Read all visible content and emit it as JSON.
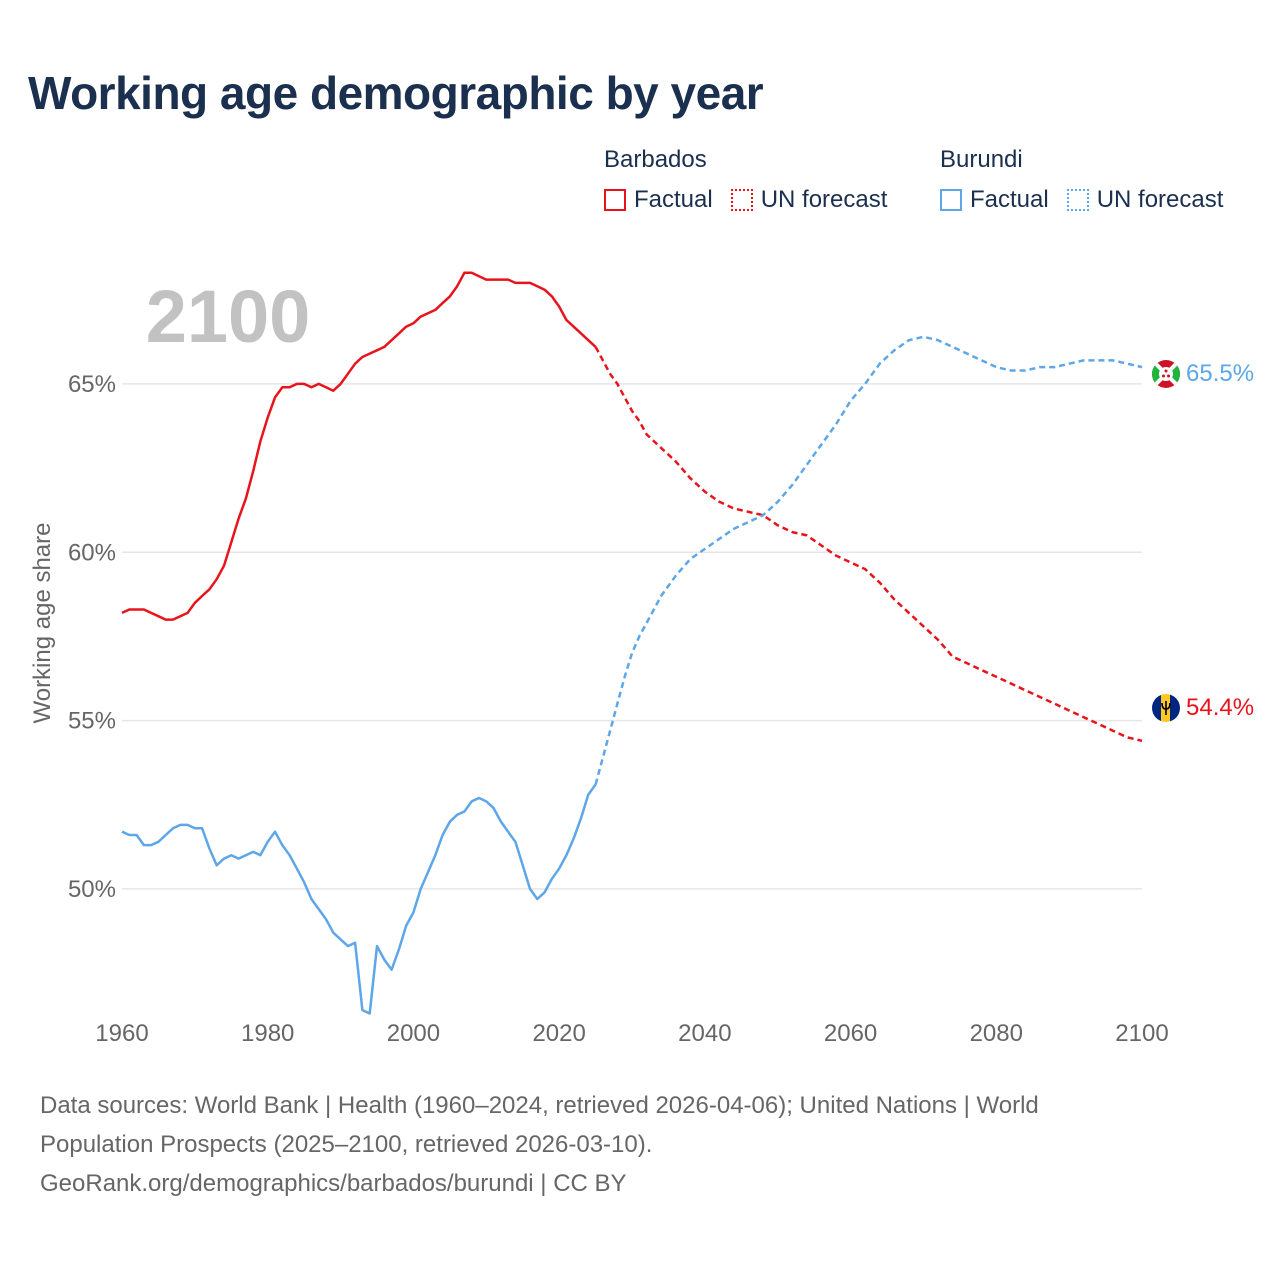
{
  "title": "Working age demographic by year",
  "year_watermark": "2100",
  "legend": {
    "groups": [
      {
        "name": "Barbados",
        "color": "#e8141c",
        "factual_label": "Factual",
        "forecast_label": "UN forecast"
      },
      {
        "name": "Burundi",
        "color": "#5da6e8",
        "factual_label": "Factual",
        "forecast_label": "UN forecast"
      }
    ]
  },
  "end_labels": {
    "barbados": "54.4%",
    "burundi": "65.5%"
  },
  "footer": {
    "line1": "Data sources: World Bank | Health (1960–2024, retrieved 2026-04-06); United Nations | World",
    "line2": "Population Prospects (2025–2100, retrieved 2026-03-10).",
    "line3": "GeoRank.org/demographics/barbados/burundi | CC BY"
  },
  "chart_data": {
    "type": "line",
    "title": "Working age demographic by year",
    "xlabel": "",
    "ylabel": "Working age share",
    "xlim": [
      1960,
      2100
    ],
    "ylim": [
      46.7,
      68.8
    ],
    "y_ticks": [
      50,
      55,
      60,
      65
    ],
    "y_tick_labels": [
      "50%",
      "55%",
      "60%",
      "65%"
    ],
    "x_ticks": [
      1960,
      1980,
      2000,
      2020,
      2040,
      2060,
      2080,
      2100
    ],
    "x_tick_labels": [
      "1960",
      "1980",
      "2000",
      "2020",
      "2040",
      "2060",
      "2080",
      "2100"
    ],
    "grid": true,
    "forecast_start": 2025,
    "series": [
      {
        "name": "Barbados",
        "color": "#e8141c",
        "x": [
          1960,
          1961,
          1962,
          1963,
          1964,
          1965,
          1966,
          1967,
          1968,
          1969,
          1970,
          1971,
          1972,
          1973,
          1974,
          1975,
          1976,
          1977,
          1978,
          1979,
          1980,
          1981,
          1982,
          1983,
          1984,
          1985,
          1986,
          1987,
          1988,
          1989,
          1990,
          1991,
          1992,
          1993,
          1994,
          1995,
          1996,
          1997,
          1998,
          1999,
          2000,
          2001,
          2002,
          2003,
          2004,
          2005,
          2006,
          2007,
          2008,
          2009,
          2010,
          2011,
          2012,
          2013,
          2014,
          2015,
          2016,
          2017,
          2018,
          2019,
          2020,
          2021,
          2022,
          2023,
          2024,
          2025,
          2026,
          2027,
          2028,
          2029,
          2030,
          2031,
          2032,
          2034,
          2036,
          2038,
          2040,
          2042,
          2044,
          2046,
          2048,
          2050,
          2052,
          2054,
          2056,
          2058,
          2060,
          2062,
          2064,
          2066,
          2068,
          2070,
          2072,
          2074,
          2076,
          2078,
          2080,
          2082,
          2084,
          2086,
          2088,
          2090,
          2092,
          2094,
          2096,
          2098,
          2100
        ],
        "values": [
          58.2,
          58.3,
          58.3,
          58.3,
          58.2,
          58.1,
          58.0,
          58.0,
          58.1,
          58.2,
          58.5,
          58.7,
          58.9,
          59.2,
          59.6,
          60.3,
          61.0,
          61.6,
          62.4,
          63.3,
          64.0,
          64.6,
          64.9,
          64.9,
          65.0,
          65.0,
          64.9,
          65.0,
          64.9,
          64.8,
          65.0,
          65.3,
          65.6,
          65.8,
          65.9,
          66.0,
          66.1,
          66.3,
          66.5,
          66.7,
          66.8,
          67.0,
          67.1,
          67.2,
          67.4,
          67.6,
          67.9,
          68.3,
          68.3,
          68.2,
          68.1,
          68.1,
          68.1,
          68.1,
          68.0,
          68.0,
          68.0,
          67.9,
          67.8,
          67.6,
          67.3,
          66.9,
          66.7,
          66.5,
          66.3,
          66.1,
          65.7,
          65.3,
          65.0,
          64.6,
          64.2,
          63.9,
          63.5,
          63.1,
          62.7,
          62.2,
          61.8,
          61.5,
          61.3,
          61.2,
          61.1,
          60.8,
          60.6,
          60.5,
          60.2,
          59.9,
          59.7,
          59.5,
          59.1,
          58.6,
          58.2,
          57.8,
          57.4,
          56.9,
          56.7,
          56.5,
          56.3,
          56.1,
          55.9,
          55.7,
          55.5,
          55.3,
          55.1,
          54.9,
          54.7,
          54.5,
          54.4
        ]
      },
      {
        "name": "Burundi",
        "color": "#5da6e8",
        "x": [
          1960,
          1961,
          1962,
          1963,
          1964,
          1965,
          1966,
          1967,
          1968,
          1969,
          1970,
          1971,
          1972,
          1973,
          1974,
          1975,
          1976,
          1977,
          1978,
          1979,
          1980,
          1981,
          1982,
          1983,
          1984,
          1985,
          1986,
          1987,
          1988,
          1989,
          1990,
          1991,
          1992,
          1993,
          1994,
          1995,
          1996,
          1997,
          1998,
          1999,
          2000,
          2001,
          2002,
          2003,
          2004,
          2005,
          2006,
          2007,
          2008,
          2009,
          2010,
          2011,
          2012,
          2013,
          2014,
          2015,
          2016,
          2017,
          2018,
          2019,
          2020,
          2021,
          2022,
          2023,
          2024,
          2025,
          2026,
          2027,
          2028,
          2029,
          2030,
          2031,
          2032,
          2034,
          2036,
          2038,
          2040,
          2042,
          2044,
          2046,
          2048,
          2050,
          2052,
          2054,
          2056,
          2058,
          2060,
          2062,
          2064,
          2066,
          2068,
          2070,
          2072,
          2074,
          2076,
          2078,
          2080,
          2082,
          2084,
          2086,
          2088,
          2090,
          2092,
          2094,
          2096,
          2098,
          2100
        ],
        "values": [
          51.7,
          51.6,
          51.6,
          51.3,
          51.3,
          51.4,
          51.6,
          51.8,
          51.9,
          51.9,
          51.8,
          51.8,
          51.2,
          50.7,
          50.9,
          51.0,
          50.9,
          51.0,
          51.1,
          51.0,
          51.4,
          51.7,
          51.3,
          51.0,
          50.6,
          50.2,
          49.7,
          49.4,
          49.1,
          48.7,
          48.5,
          48.3,
          48.4,
          46.4,
          46.3,
          48.3,
          47.9,
          47.6,
          48.2,
          48.9,
          49.3,
          50.0,
          50.5,
          51.0,
          51.6,
          52.0,
          52.2,
          52.3,
          52.6,
          52.7,
          52.6,
          52.4,
          52.0,
          51.7,
          51.4,
          50.7,
          50.0,
          49.7,
          49.9,
          50.3,
          50.6,
          51.0,
          51.5,
          52.1,
          52.8,
          53.1,
          53.9,
          54.7,
          55.5,
          56.3,
          57.0,
          57.5,
          57.9,
          58.7,
          59.3,
          59.8,
          60.1,
          60.4,
          60.7,
          60.9,
          61.1,
          61.5,
          62.0,
          62.6,
          63.2,
          63.8,
          64.5,
          65.0,
          65.6,
          66.0,
          66.3,
          66.4,
          66.3,
          66.1,
          65.9,
          65.7,
          65.5,
          65.4,
          65.4,
          65.5,
          65.5,
          65.6,
          65.7,
          65.7,
          65.7,
          65.6,
          65.5
        ]
      }
    ]
  }
}
